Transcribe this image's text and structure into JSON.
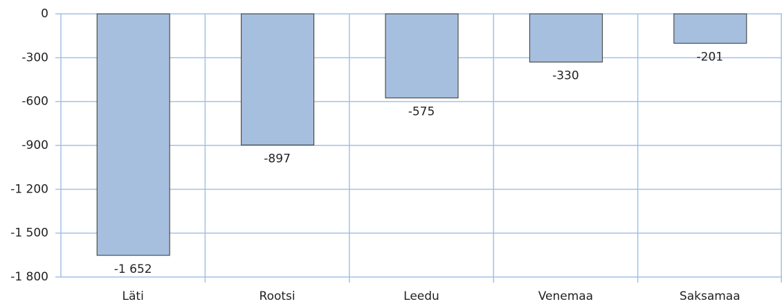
{
  "chart_data": {
    "type": "bar",
    "categories": [
      "Läti",
      "Rootsi",
      "Leedu",
      "Venemaa",
      "Saksamaa"
    ],
    "values": [
      -1652,
      -897,
      -575,
      -330,
      -201
    ],
    "value_labels": [
      "-1 652",
      "-897",
      "-575",
      "-330",
      "-201"
    ],
    "color": "#a7bfde",
    "ylim": [
      -1800,
      0
    ],
    "yticks": [
      0,
      -300,
      -600,
      -900,
      {
        "value": -1200,
        "label": "-1 200"
      },
      {
        "value": -1500,
        "label": "-1 500"
      },
      {
        "value": -1800,
        "label": "-1 800"
      }
    ],
    "grid": true
  }
}
